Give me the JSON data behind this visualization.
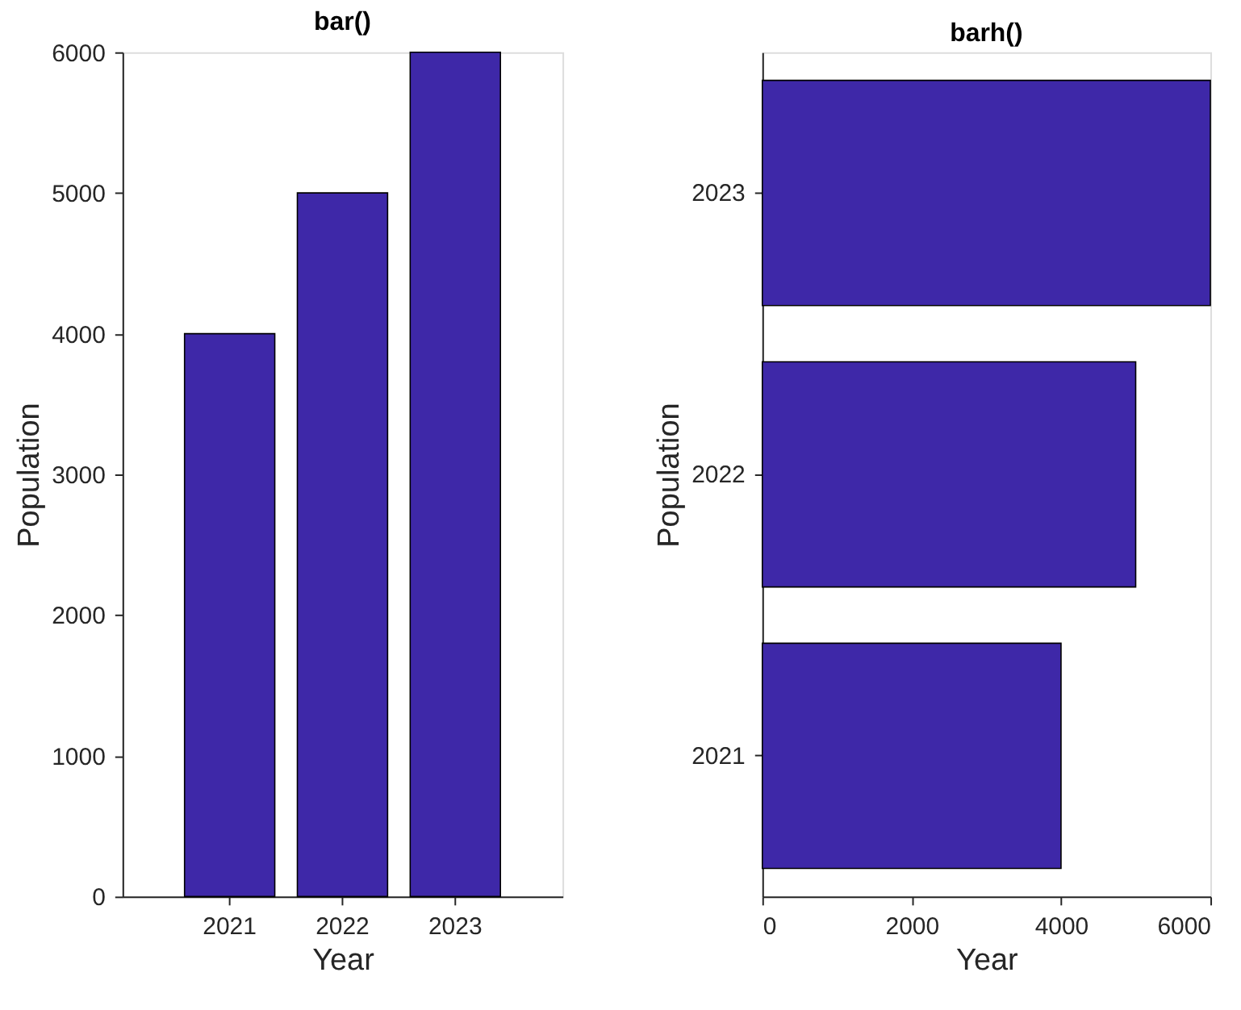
{
  "chart_data": [
    {
      "type": "bar",
      "title": "bar()",
      "xlabel": "Year",
      "ylabel": "Population",
      "categories": [
        "2021",
        "2022",
        "2023"
      ],
      "values": [
        4000,
        5000,
        6000
      ],
      "color": "#3e28a8",
      "ylim": [
        0,
        6000
      ],
      "yticks": [
        0,
        1000,
        2000,
        3000,
        4000,
        5000,
        6000
      ],
      "grid": false
    },
    {
      "type": "bar",
      "orientation": "horizontal",
      "title": "barh()",
      "xlabel": "Year",
      "ylabel": "Population",
      "categories": [
        "2023",
        "2022",
        "2021"
      ],
      "values": [
        6000,
        5000,
        4000
      ],
      "color": "#3e28a8",
      "xlim": [
        0,
        6000
      ],
      "xticks": [
        0,
        2000,
        4000,
        6000
      ],
      "grid": false
    }
  ]
}
